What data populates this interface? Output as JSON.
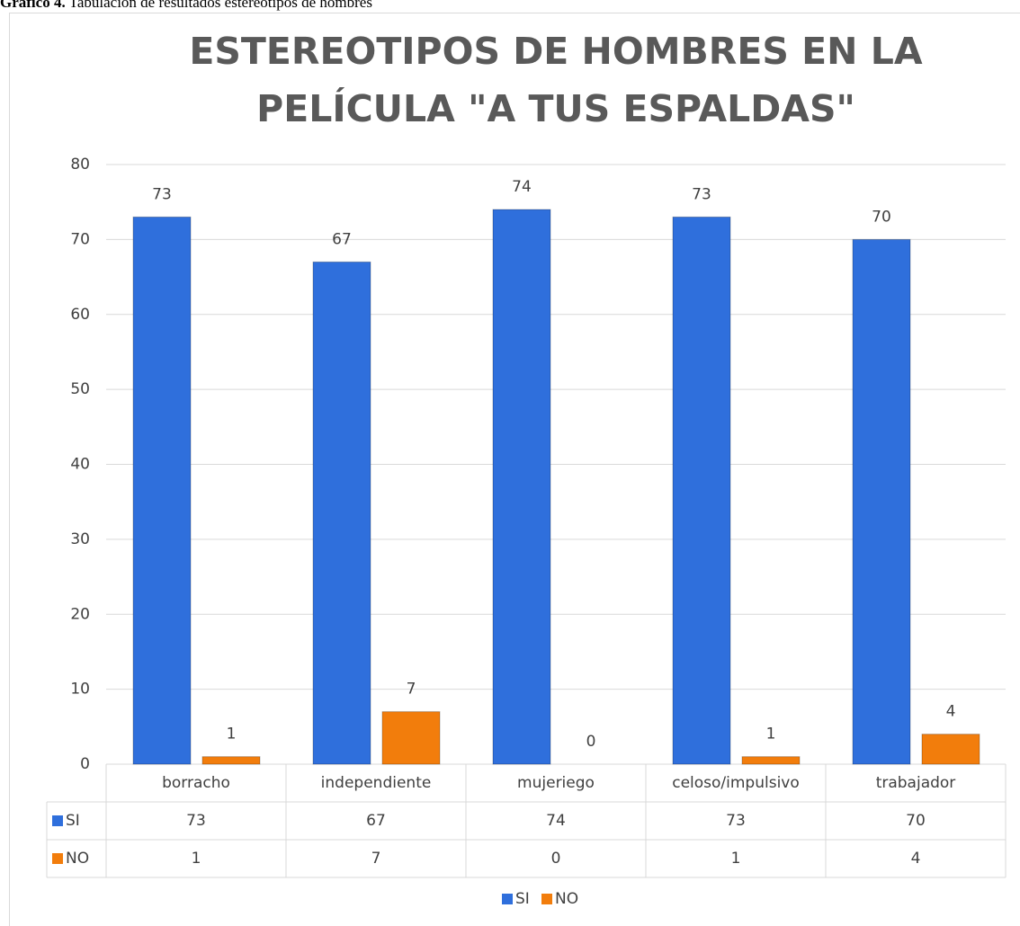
{
  "caption_label": "Gráfico 4.",
  "caption": "Tabulación de resultados estereotipos de hombres",
  "chart_data": {
    "type": "bar",
    "title": [
      "ESTEREOTIPOS DE HOMBRES EN LA",
      "PELÍCULA \"A TUS ESPALDAS\""
    ],
    "categories": [
      "borracho",
      "independiente",
      "mujeriego",
      "celoso/impulsivo",
      "trabajador"
    ],
    "series": [
      {
        "name": "SI",
        "color": "#2f6fdc",
        "values": [
          73,
          67,
          74,
          73,
          70
        ]
      },
      {
        "name": "NO",
        "color": "#f27d0c",
        "values": [
          1,
          7,
          0,
          1,
          4
        ]
      }
    ],
    "ylim": [
      0,
      80
    ],
    "yticks": [
      0,
      10,
      20,
      30,
      40,
      50,
      60,
      70,
      80
    ],
    "grid": true,
    "legend": "bottom"
  }
}
